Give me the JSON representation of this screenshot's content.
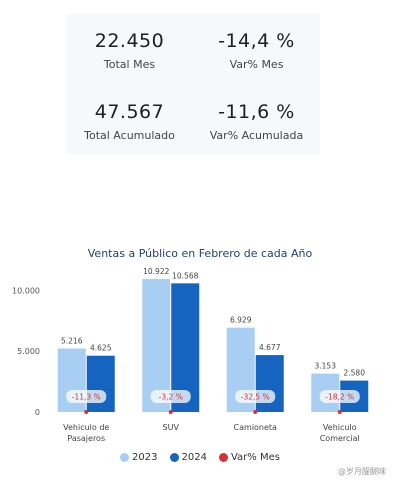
{
  "kpis": [
    {
      "value": "22.450",
      "label": "Total Mes"
    },
    {
      "value": "-14,4 %",
      "label": "Var% Mes"
    },
    {
      "value": "47.567",
      "label": "Total Acumulado"
    },
    {
      "value": "-11,6 %",
      "label": "Var% Acumulada"
    }
  ],
  "watermark": "@岁月醍醐味",
  "chart_data": {
    "type": "bar",
    "title": "Ventas a Público en Febrero de cada Año",
    "categories": [
      [
        "Vehiculo de",
        "Pasajeros"
      ],
      [
        "SUV"
      ],
      [
        "Camioneta"
      ],
      [
        "Vehiculo",
        "Comercial"
      ]
    ],
    "series": [
      {
        "name": "2023",
        "values": [
          5216,
          10922,
          6929,
          3153
        ],
        "labels": [
          "5.216",
          "10.922",
          "6.929",
          "3.153"
        ],
        "color": "#a8cff3"
      },
      {
        "name": "2024",
        "values": [
          4625,
          10568,
          4677,
          2580
        ],
        "labels": [
          "4.625",
          "10.568",
          "4.677",
          "2.580"
        ],
        "color": "#1565c0"
      }
    ],
    "variance": {
      "name": "Var% Mes",
      "labels": [
        "-11,3 %",
        "-3,2 %",
        "-32,5 %",
        "-18,2 %"
      ],
      "color": "#d13438"
    },
    "yticks": [
      0,
      5000,
      10000
    ],
    "ytick_labels": [
      "0",
      "5.000",
      "10.000"
    ],
    "ylim": [
      0,
      11500
    ],
    "legend_position": "bottom",
    "grid": false
  }
}
